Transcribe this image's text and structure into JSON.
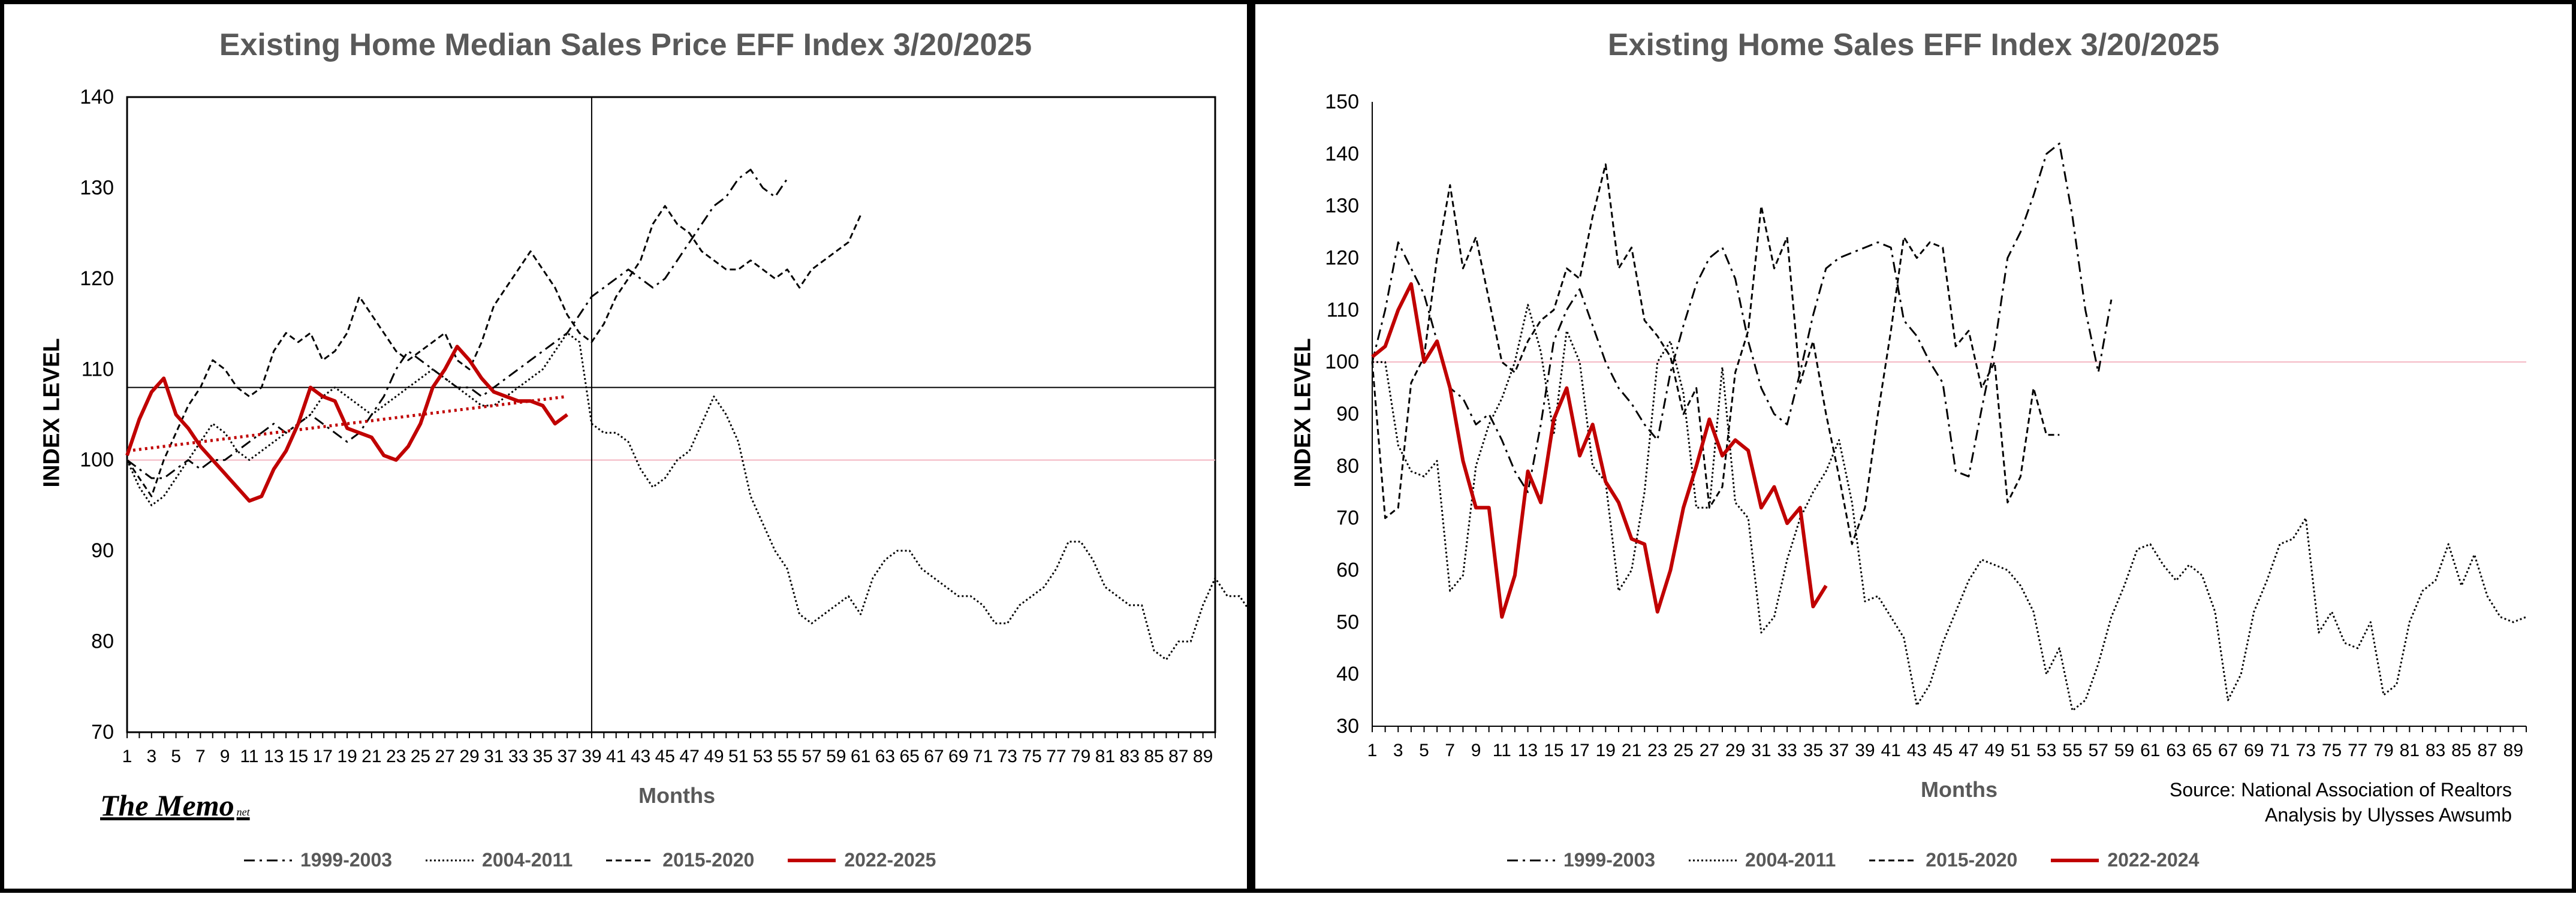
{
  "left": {
    "memo": "The Memo",
    "memo_sub": "net",
    "chart_data": {
      "type": "line",
      "title": "Existing Home Median Sales Price EFF  Index 3/20/2025",
      "xlabel": "Months",
      "ylabel": "INDEX LEVEL",
      "ylim": [
        70,
        140
      ],
      "yticks": [
        70,
        80,
        90,
        100,
        110,
        120,
        130,
        140
      ],
      "xlim": [
        1,
        90
      ],
      "xtick_labels_every": 2,
      "legend_position": "bottom",
      "reference_lines": {
        "horizontal_pink": 100,
        "horizontal_black": 108,
        "vertical_black": 39
      },
      "series": [
        {
          "name": "1999-2003",
          "style": "dashdot",
          "color": "#000000",
          "values": [
            100,
            99,
            98,
            98,
            99,
            100,
            99,
            100,
            100,
            101,
            102,
            103,
            104,
            103,
            104,
            105,
            104,
            103,
            102,
            103,
            105,
            107,
            110,
            112,
            111,
            110,
            109,
            108,
            108,
            107,
            108,
            109,
            110,
            111,
            112,
            113,
            114,
            116,
            118,
            119,
            120,
            121,
            120,
            119,
            120,
            122,
            124,
            126,
            128,
            129,
            131,
            132,
            130,
            129,
            131
          ]
        },
        {
          "name": "2004-2011",
          "style": "dotted",
          "color": "#000000",
          "values": [
            100,
            97,
            95,
            96,
            98,
            100,
            102,
            104,
            103,
            101,
            100,
            101,
            102,
            103,
            104,
            105,
            107,
            108,
            107,
            106,
            105,
            106,
            107,
            108,
            109,
            110,
            109,
            108,
            107,
            106,
            106,
            107,
            108,
            109,
            110,
            112,
            114,
            113,
            104,
            103,
            103,
            102,
            99,
            97,
            98,
            100,
            101,
            104,
            107,
            105,
            102,
            96,
            93,
            90,
            88,
            83,
            82,
            83,
            84,
            85,
            83,
            87,
            89,
            90,
            90,
            88,
            87,
            86,
            85,
            85,
            84,
            82,
            82,
            84,
            85,
            86,
            88,
            91,
            91,
            89,
            86,
            85,
            84,
            84,
            79,
            78,
            80,
            80,
            84,
            87,
            85,
            85,
            83,
            80,
            81
          ]
        },
        {
          "name": "2015-2020",
          "style": "dashed",
          "color": "#000000",
          "values": [
            100,
            98,
            96,
            100,
            103,
            106,
            108,
            111,
            110,
            108,
            107,
            108,
            112,
            114,
            113,
            114,
            111,
            112,
            114,
            118,
            116,
            114,
            112,
            111,
            112,
            113,
            114,
            111,
            110,
            113,
            117,
            119,
            121,
            123,
            121,
            119,
            116,
            114,
            113,
            115,
            118,
            120,
            122,
            126,
            128,
            126,
            125,
            123,
            122,
            121,
            121,
            122,
            121,
            120,
            121,
            119,
            121,
            122,
            123,
            124,
            127
          ]
        },
        {
          "name": "2022-2025",
          "style": "solid",
          "color": "#C00000",
          "values": [
            100.5,
            104.5,
            107.5,
            109,
            105,
            103.5,
            101.5,
            100,
            98.5,
            97,
            95.5,
            96,
            99,
            101,
            104,
            108,
            107,
            106.5,
            103.5,
            103,
            102.5,
            100.5,
            100,
            101.5,
            104,
            108,
            110,
            112.5,
            111,
            109,
            107.5,
            107,
            106.5,
            106.5,
            106,
            104,
            105
          ]
        },
        {
          "name": "",
          "style": "trend",
          "color": "#C00000",
          "values": [
            101,
            107
          ]
        }
      ]
    }
  },
  "right": {
    "source_line1": "Source: National Association of Realtors",
    "source_line2": "Analysis by Ulysses Awsumb",
    "chart_data": {
      "type": "line",
      "title": "Existing Home  Sales  EFF  Index 3/20/2025",
      "xlabel": "Months",
      "ylabel": "INDEX LEVEL",
      "ylim": [
        30,
        150
      ],
      "yticks": [
        30,
        40,
        50,
        60,
        70,
        80,
        90,
        100,
        110,
        120,
        130,
        140,
        150
      ],
      "xlim": [
        1,
        90
      ],
      "xtick_labels_every": 2,
      "legend_position": "bottom",
      "reference_lines": {
        "horizontal_pink": 100
      },
      "series": [
        {
          "name": "1999-2003",
          "style": "dashdot",
          "color": "#000000",
          "values": [
            100,
            110,
            123,
            118,
            113,
            104,
            95,
            93,
            88,
            90,
            85,
            79,
            75,
            88,
            104,
            110,
            114,
            107,
            100,
            95,
            92,
            88,
            85,
            98,
            107,
            115,
            120,
            122,
            116,
            104,
            95,
            90,
            88,
            98,
            109,
            118,
            120,
            121,
            122,
            123,
            122,
            108,
            105,
            100,
            96,
            79,
            78,
            91,
            103,
            120,
            125,
            132,
            140,
            142,
            128,
            110,
            98,
            112
          ]
        },
        {
          "name": "2004-2011",
          "style": "dotted",
          "color": "#000000",
          "values": [
            100,
            100,
            84,
            79,
            78,
            81,
            56,
            59,
            80,
            88,
            93,
            100,
            111,
            102,
            86,
            106,
            100,
            80,
            77,
            56,
            60,
            75,
            100,
            104,
            94,
            72,
            72,
            99,
            73,
            70,
            48,
            51,
            62,
            70,
            75,
            79,
            85,
            73,
            54,
            55,
            51,
            47,
            34,
            38,
            46,
            52,
            58,
            62,
            61,
            60,
            57,
            52,
            40,
            45,
            33,
            35,
            42,
            51,
            57,
            64,
            65,
            61,
            58,
            61,
            59,
            52,
            35,
            40,
            52,
            58,
            65,
            66,
            70,
            48,
            52,
            46,
            45,
            50,
            36,
            38,
            50,
            56,
            58,
            65,
            57,
            63,
            55,
            51,
            50,
            51
          ]
        },
        {
          "name": "2015-2020",
          "style": "dashed",
          "color": "#000000",
          "values": [
            100,
            70,
            72,
            96,
            101,
            120,
            134,
            118,
            124,
            112,
            100,
            98,
            104,
            108,
            110,
            118,
            116,
            128,
            138,
            118,
            122,
            108,
            105,
            101,
            90,
            95,
            72,
            76,
            98,
            106,
            130,
            118,
            124,
            96,
            104,
            90,
            78,
            65,
            72,
            90,
            106,
            124,
            120,
            123,
            122,
            103,
            106,
            95,
            100,
            73,
            78,
            95,
            86,
            86
          ]
        },
        {
          "name": "2022-2024",
          "style": "solid",
          "color": "#C00000",
          "values": [
            101,
            103,
            110,
            115,
            100,
            104,
            95,
            81,
            72,
            72,
            51,
            59,
            79,
            73,
            89,
            95,
            82,
            88,
            77,
            73,
            66,
            65,
            52,
            60,
            72,
            80,
            89,
            82,
            85,
            83,
            72,
            76,
            69,
            72,
            53,
            57
          ]
        }
      ]
    }
  }
}
